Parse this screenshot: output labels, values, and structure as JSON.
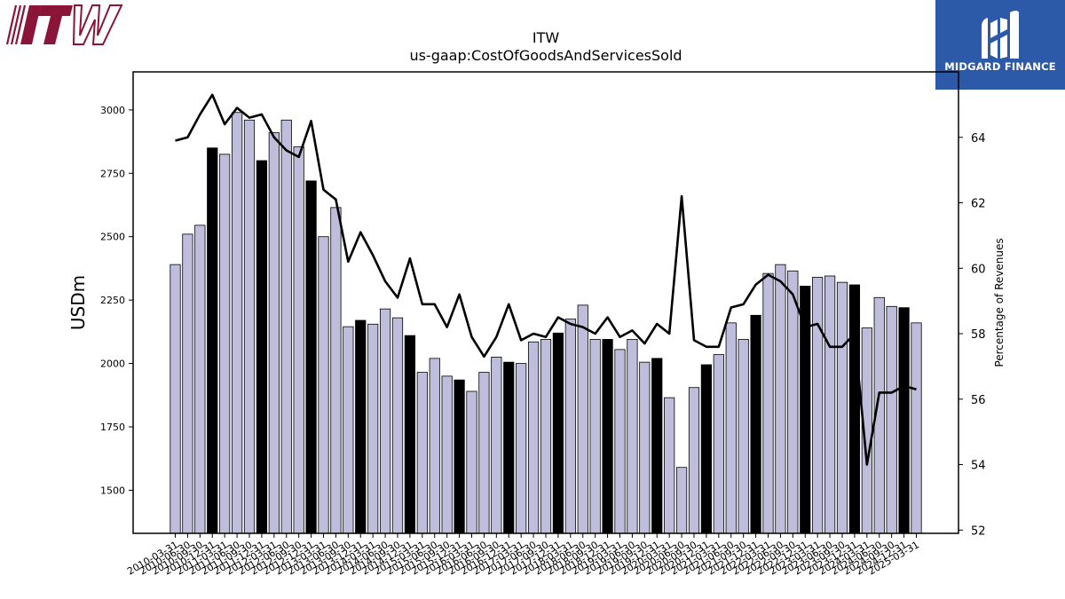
{
  "brand": {
    "company_logo_text": "ITW",
    "company_logo_color": "#8a1538",
    "publisher_name": "MIDGARD FINANCE",
    "publisher_color": "#2d5aa8"
  },
  "chart_data": {
    "type": "bar",
    "title": "ITW",
    "subtitle": "us-gaap:CostOfGoodsAndServicesSold",
    "ylabel": "USDm",
    "y2label": "Percentage of Revenues",
    "ylim": [
      1330,
      3150
    ],
    "y2lim": [
      51.9,
      66.0
    ],
    "yticks": [
      1500,
      1750,
      2000,
      2250,
      2500,
      2750,
      3000
    ],
    "y2ticks": [
      52,
      54,
      56,
      58,
      60,
      62,
      64
    ],
    "bar_fill": "#bebddb",
    "q4_bar_fill": "#000000",
    "line_color": "#000000",
    "grid": false,
    "categories": [
      "2010-03-31",
      "2010-06-30",
      "2010-09-30",
      "2010-12-31",
      "2011-03-31",
      "2011-06-30",
      "2011-09-30",
      "2011-12-31",
      "2012-03-31",
      "2012-06-30",
      "2012-09-30",
      "2012-12-31",
      "2013-03-31",
      "2013-06-30",
      "2013-09-30",
      "2013-12-31",
      "2014-03-31",
      "2014-06-30",
      "2014-09-30",
      "2014-12-31",
      "2015-03-31",
      "2015-06-30",
      "2015-09-30",
      "2015-12-31",
      "2016-03-31",
      "2016-06-30",
      "2016-09-30",
      "2016-12-31",
      "2017-03-31",
      "2017-06-30",
      "2017-09-30",
      "2017-12-31",
      "2018-03-31",
      "2018-06-30",
      "2018-09-30",
      "2018-12-31",
      "2019-03-31",
      "2019-06-30",
      "2019-09-30",
      "2019-12-31",
      "2020-03-31",
      "2020-06-30",
      "2020-09-30",
      "2020-12-31",
      "2021-03-31",
      "2021-06-30",
      "2021-09-30",
      "2021-12-31",
      "2022-03-31",
      "2022-06-30",
      "2022-09-30",
      "2022-12-31",
      "2023-03-31",
      "2023-06-30",
      "2023-09-30",
      "2023-12-31",
      "2024-03-31",
      "2024-06-30",
      "2024-09-30",
      "2024-12-31",
      "2025-03-31"
    ],
    "series": [
      {
        "kind": "bar",
        "axis": "left",
        "values": [
          2390,
          2510,
          2545,
          2850,
          2825,
          2990,
          2960,
          2800,
          2910,
          2960,
          2855,
          2720,
          2500,
          2615,
          2145,
          2170,
          2155,
          2215,
          2180,
          2110,
          1965,
          2020,
          1950,
          1935,
          1890,
          1965,
          2025,
          2005,
          2000,
          2085,
          2095,
          2120,
          2175,
          2230,
          2095,
          2095,
          2055,
          2095,
          2005,
          2020,
          1865,
          1590,
          1905,
          1995,
          2035,
          2160,
          2095,
          2190,
          2355,
          2390,
          2365,
          2305,
          2340,
          2345,
          2320,
          2310,
          2140,
          2260,
          2225,
          2220,
          2160
        ]
      },
      {
        "kind": "line",
        "axis": "right",
        "values": [
          63.9,
          64.0,
          64.7,
          65.3,
          64.4,
          64.9,
          64.6,
          64.7,
          64.0,
          63.6,
          63.4,
          64.5,
          62.4,
          62.1,
          60.2,
          61.1,
          60.4,
          59.6,
          59.1,
          60.3,
          58.9,
          58.9,
          58.2,
          59.2,
          57.9,
          57.3,
          57.9,
          58.9,
          57.8,
          58.0,
          57.9,
          58.5,
          58.3,
          58.2,
          58.0,
          58.5,
          57.9,
          58.1,
          57.7,
          58.3,
          58.0,
          62.2,
          57.8,
          57.6,
          57.6,
          58.8,
          58.9,
          59.5,
          59.8,
          59.6,
          59.2,
          58.2,
          58.3,
          57.6,
          57.6,
          58.0,
          54.0,
          56.2,
          56.2,
          56.4,
          56.3
        ]
      }
    ]
  }
}
